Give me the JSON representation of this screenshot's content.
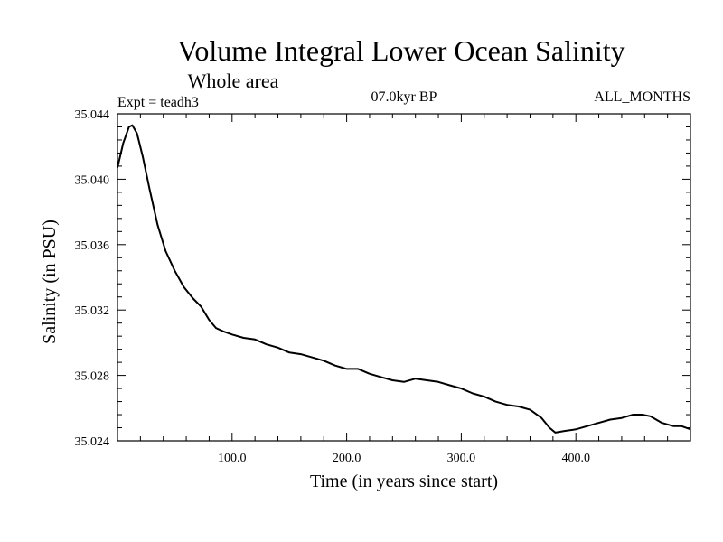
{
  "chart_data": {
    "type": "line",
    "title": "Volume Integral Lower Ocean Salinity",
    "subtitle": "Whole area",
    "experiment": "Expt = teadh3",
    "period": "07.0kyr BP",
    "months": "ALL_MONTHS",
    "xlabel": "Time (in years since start)",
    "ylabel": "Salinity (in PSU)",
    "xlim": [
      0,
      500
    ],
    "ylim": [
      35.024,
      35.044
    ],
    "x_ticks": [
      100,
      200,
      300,
      400
    ],
    "x_tick_labels": [
      "100.0",
      "200.0",
      "300.0",
      "400.0"
    ],
    "y_ticks": [
      35.024,
      35.028,
      35.032,
      35.036,
      35.04,
      35.044
    ],
    "y_tick_labels": [
      "35.024",
      "35.028",
      "35.032",
      "35.036",
      "35.040",
      "35.044"
    ],
    "series": [
      {
        "name": "Salinity",
        "x": [
          0,
          5,
          10,
          13,
          17,
          22,
          28,
          35,
          42,
          50,
          58,
          66,
          73,
          80,
          86,
          92,
          100,
          110,
          120,
          130,
          140,
          150,
          160,
          170,
          180,
          190,
          200,
          210,
          220,
          230,
          240,
          250,
          260,
          270,
          280,
          290,
          300,
          310,
          320,
          330,
          340,
          350,
          360,
          370,
          377,
          382,
          390,
          400,
          410,
          420,
          430,
          440,
          450,
          458,
          465,
          475,
          485,
          492,
          500
        ],
        "y": [
          35.0407,
          35.0422,
          35.0432,
          35.0433,
          35.0428,
          35.0414,
          35.0394,
          35.0372,
          35.0356,
          35.0344,
          35.0334,
          35.0327,
          35.0322,
          35.0314,
          35.0309,
          35.0307,
          35.0305,
          35.0303,
          35.0302,
          35.0299,
          35.0297,
          35.0294,
          35.0293,
          35.0291,
          35.0289,
          35.0286,
          35.0284,
          35.0284,
          35.0281,
          35.0279,
          35.0277,
          35.0276,
          35.0278,
          35.0277,
          35.0276,
          35.0274,
          35.0272,
          35.0269,
          35.0267,
          35.0264,
          35.0262,
          35.0261,
          35.0259,
          35.0254,
          35.0248,
          35.0245,
          35.0246,
          35.0247,
          35.0249,
          35.0251,
          35.0253,
          35.0254,
          35.0256,
          35.0256,
          35.0255,
          35.0251,
          35.0249,
          35.0249,
          35.0247
        ]
      }
    ]
  }
}
